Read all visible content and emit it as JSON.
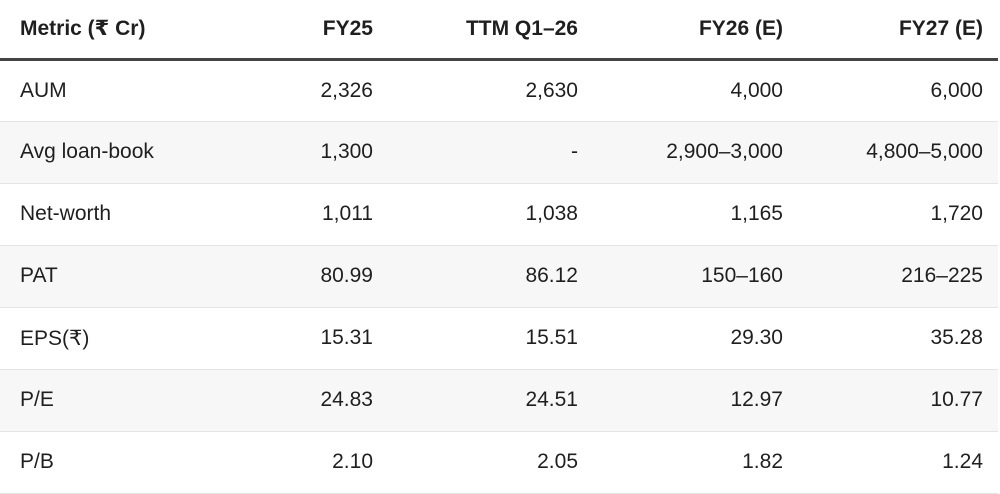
{
  "table": {
    "header": [
      "Metric (₹ Cr)",
      "FY25",
      "TTM Q1–26",
      "FY26 (E)",
      "FY27 (E)"
    ],
    "rows": [
      [
        "AUM",
        "2,326",
        "2,630",
        "4,000",
        "6,000"
      ],
      [
        "Avg loan-book",
        "1,300",
        "-",
        "2,900–3,000",
        "4,800–5,000"
      ],
      [
        "Net-worth",
        "1,011",
        "1,038",
        "1,165",
        "1,720"
      ],
      [
        "PAT",
        "80.99",
        "86.12",
        "150–160",
        "216–225"
      ],
      [
        "EPS(₹)",
        "15.31",
        "15.51",
        "29.30",
        "35.28"
      ],
      [
        "P/E",
        "24.83",
        "24.51",
        "12.97",
        "10.77"
      ],
      [
        "P/B",
        "2.10",
        "2.05",
        "1.82",
        "1.24"
      ]
    ]
  }
}
